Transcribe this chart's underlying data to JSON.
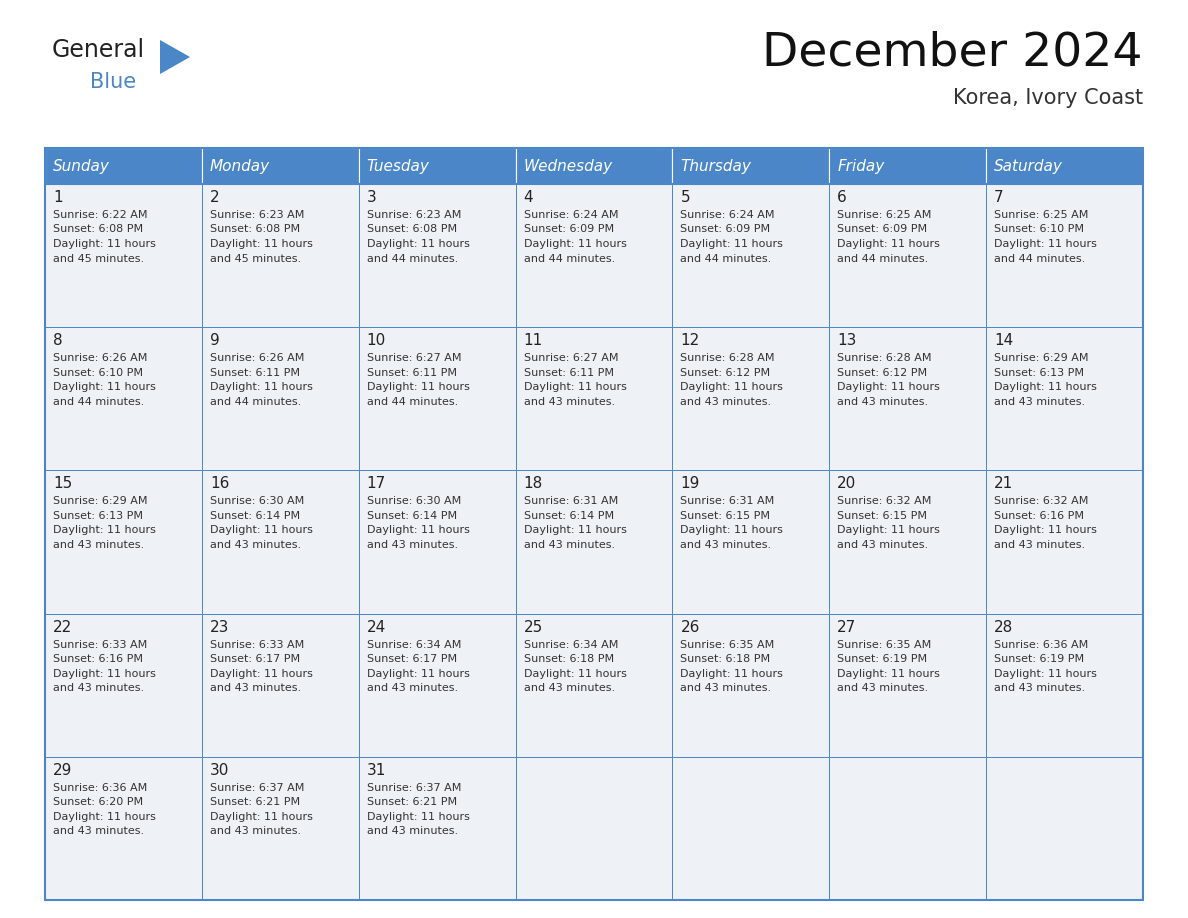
{
  "title": "December 2024",
  "subtitle": "Korea, Ivory Coast",
  "header_color": "#4a86c8",
  "header_text_color": "#ffffff",
  "cell_bg_color": "#eef2f7",
  "border_color": "#4a86c8",
  "days_of_week": [
    "Sunday",
    "Monday",
    "Tuesday",
    "Wednesday",
    "Thursday",
    "Friday",
    "Saturday"
  ],
  "calendar": [
    [
      {
        "day": "1",
        "sunrise": "6:22 AM",
        "sunset": "6:08 PM",
        "daylight_h": "11 hours",
        "daylight_m": "and 45 minutes."
      },
      {
        "day": "2",
        "sunrise": "6:23 AM",
        "sunset": "6:08 PM",
        "daylight_h": "11 hours",
        "daylight_m": "and 45 minutes."
      },
      {
        "day": "3",
        "sunrise": "6:23 AM",
        "sunset": "6:08 PM",
        "daylight_h": "11 hours",
        "daylight_m": "and 44 minutes."
      },
      {
        "day": "4",
        "sunrise": "6:24 AM",
        "sunset": "6:09 PM",
        "daylight_h": "11 hours",
        "daylight_m": "and 44 minutes."
      },
      {
        "day": "5",
        "sunrise": "6:24 AM",
        "sunset": "6:09 PM",
        "daylight_h": "11 hours",
        "daylight_m": "and 44 minutes."
      },
      {
        "day": "6",
        "sunrise": "6:25 AM",
        "sunset": "6:09 PM",
        "daylight_h": "11 hours",
        "daylight_m": "and 44 minutes."
      },
      {
        "day": "7",
        "sunrise": "6:25 AM",
        "sunset": "6:10 PM",
        "daylight_h": "11 hours",
        "daylight_m": "and 44 minutes."
      }
    ],
    [
      {
        "day": "8",
        "sunrise": "6:26 AM",
        "sunset": "6:10 PM",
        "daylight_h": "11 hours",
        "daylight_m": "and 44 minutes."
      },
      {
        "day": "9",
        "sunrise": "6:26 AM",
        "sunset": "6:11 PM",
        "daylight_h": "11 hours",
        "daylight_m": "and 44 minutes."
      },
      {
        "day": "10",
        "sunrise": "6:27 AM",
        "sunset": "6:11 PM",
        "daylight_h": "11 hours",
        "daylight_m": "and 44 minutes."
      },
      {
        "day": "11",
        "sunrise": "6:27 AM",
        "sunset": "6:11 PM",
        "daylight_h": "11 hours",
        "daylight_m": "and 43 minutes."
      },
      {
        "day": "12",
        "sunrise": "6:28 AM",
        "sunset": "6:12 PM",
        "daylight_h": "11 hours",
        "daylight_m": "and 43 minutes."
      },
      {
        "day": "13",
        "sunrise": "6:28 AM",
        "sunset": "6:12 PM",
        "daylight_h": "11 hours",
        "daylight_m": "and 43 minutes."
      },
      {
        "day": "14",
        "sunrise": "6:29 AM",
        "sunset": "6:13 PM",
        "daylight_h": "11 hours",
        "daylight_m": "and 43 minutes."
      }
    ],
    [
      {
        "day": "15",
        "sunrise": "6:29 AM",
        "sunset": "6:13 PM",
        "daylight_h": "11 hours",
        "daylight_m": "and 43 minutes."
      },
      {
        "day": "16",
        "sunrise": "6:30 AM",
        "sunset": "6:14 PM",
        "daylight_h": "11 hours",
        "daylight_m": "and 43 minutes."
      },
      {
        "day": "17",
        "sunrise": "6:30 AM",
        "sunset": "6:14 PM",
        "daylight_h": "11 hours",
        "daylight_m": "and 43 minutes."
      },
      {
        "day": "18",
        "sunrise": "6:31 AM",
        "sunset": "6:14 PM",
        "daylight_h": "11 hours",
        "daylight_m": "and 43 minutes."
      },
      {
        "day": "19",
        "sunrise": "6:31 AM",
        "sunset": "6:15 PM",
        "daylight_h": "11 hours",
        "daylight_m": "and 43 minutes."
      },
      {
        "day": "20",
        "sunrise": "6:32 AM",
        "sunset": "6:15 PM",
        "daylight_h": "11 hours",
        "daylight_m": "and 43 minutes."
      },
      {
        "day": "21",
        "sunrise": "6:32 AM",
        "sunset": "6:16 PM",
        "daylight_h": "11 hours",
        "daylight_m": "and 43 minutes."
      }
    ],
    [
      {
        "day": "22",
        "sunrise": "6:33 AM",
        "sunset": "6:16 PM",
        "daylight_h": "11 hours",
        "daylight_m": "and 43 minutes."
      },
      {
        "day": "23",
        "sunrise": "6:33 AM",
        "sunset": "6:17 PM",
        "daylight_h": "11 hours",
        "daylight_m": "and 43 minutes."
      },
      {
        "day": "24",
        "sunrise": "6:34 AM",
        "sunset": "6:17 PM",
        "daylight_h": "11 hours",
        "daylight_m": "and 43 minutes."
      },
      {
        "day": "25",
        "sunrise": "6:34 AM",
        "sunset": "6:18 PM",
        "daylight_h": "11 hours",
        "daylight_m": "and 43 minutes."
      },
      {
        "day": "26",
        "sunrise": "6:35 AM",
        "sunset": "6:18 PM",
        "daylight_h": "11 hours",
        "daylight_m": "and 43 minutes."
      },
      {
        "day": "27",
        "sunrise": "6:35 AM",
        "sunset": "6:19 PM",
        "daylight_h": "11 hours",
        "daylight_m": "and 43 minutes."
      },
      {
        "day": "28",
        "sunrise": "6:36 AM",
        "sunset": "6:19 PM",
        "daylight_h": "11 hours",
        "daylight_m": "and 43 minutes."
      }
    ],
    [
      {
        "day": "29",
        "sunrise": "6:36 AM",
        "sunset": "6:20 PM",
        "daylight_h": "11 hours",
        "daylight_m": "and 43 minutes."
      },
      {
        "day": "30",
        "sunrise": "6:37 AM",
        "sunset": "6:21 PM",
        "daylight_h": "11 hours",
        "daylight_m": "and 43 minutes."
      },
      {
        "day": "31",
        "sunrise": "6:37 AM",
        "sunset": "6:21 PM",
        "daylight_h": "11 hours",
        "daylight_m": "and 43 minutes."
      },
      null,
      null,
      null,
      null
    ]
  ],
  "logo_text1": "General",
  "logo_text2": "Blue",
  "logo_triangle_color": "#4a86c8",
  "logo_text1_color": "#222222",
  "title_fontsize": 34,
  "subtitle_fontsize": 15,
  "day_num_fontsize": 11,
  "cell_info_fontsize": 8,
  "header_fontsize": 11,
  "logo_fontsize1": 17,
  "logo_fontsize2": 15
}
